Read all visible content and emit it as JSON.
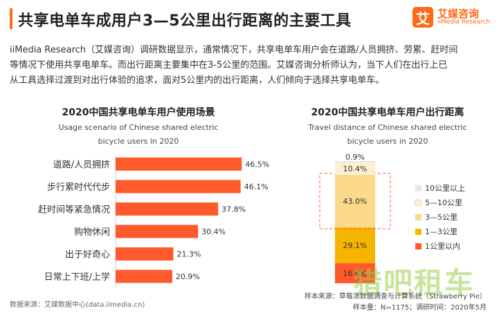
{
  "header": {
    "title": "共享电单车成用户3—5公里出行距离的主要工具",
    "logo_glyph": "艾",
    "logo_cn": "艾媒咨询",
    "logo_en": "iiMedia Research",
    "accent_color": "#ff6a1a"
  },
  "intro": {
    "line1": "iiMedia Research（艾媒咨询）调研数据显示，通常情况下，共享电单车用户会在道路/人员拥挤、劳累、赶时间",
    "line2": "等情况下使用共享电单车。而出行距离主要集中在3-5公里的范围。艾媒咨询分析师认为，当下人们在出行上已",
    "line3": "从工具选择过渡到对出行体验的追求，面对5公里内的出行距离，人们倾向于选择共享电单车。"
  },
  "chart_data": [
    {
      "type": "bar",
      "orientation": "horizontal",
      "title": "2020中国共享电单车用户使用场景",
      "subtitle_line1": "Usage scenario of Chinese shared electric",
      "subtitle_line2": "bicycle users in 2020",
      "categories": [
        "道路/人员拥挤",
        "步行累时代代步",
        "赶时间等紧急情况",
        "购物休闲",
        "出于好奇心",
        "日常上下班/上学"
      ],
      "values": [
        46.5,
        46.1,
        37.8,
        30.4,
        21.3,
        20.9
      ],
      "value_suffix": "%",
      "bar_color": "#ff5a2c",
      "xlim": [
        0,
        50
      ]
    },
    {
      "type": "bar",
      "orientation": "stacked-vertical",
      "title": "2020中国共享电单车用户出行距离",
      "subtitle_line1": "Travel distance of Chinese shared electric",
      "subtitle_line2": "bicycle users in 2020",
      "series": [
        {
          "name": "1公里以内",
          "value": 16.6,
          "color": "#ff5a2c"
        },
        {
          "name": "1—3公里",
          "value": 29.1,
          "color": "#f5b400"
        },
        {
          "name": "3—5公里",
          "value": 43.0,
          "color": "#fbd98a"
        },
        {
          "name": "5—10公里",
          "value": 10.4,
          "color": "#fdf0d2"
        },
        {
          "name": "10公里以上",
          "value": 0.9,
          "color": "#e6e6e6"
        }
      ],
      "legend_order": [
        "10公里以上",
        "5—10公里",
        "3—5公里",
        "1—3公里",
        "1公里以内"
      ],
      "value_suffix": "%",
      "highlight": "3—5公里",
      "legend_placement": "right"
    }
  ],
  "footer": {
    "source_left": "数据来源：艾媒数据中心(data.iimedia.cn)",
    "sample_source": "样本来源：草莓派数据调查与计算系统（Strawberry Pie）",
    "sample_size": "样本量：N=1175；调研时间：2020年5月"
  },
  "watermark": {
    "text": "猎吧租车"
  }
}
